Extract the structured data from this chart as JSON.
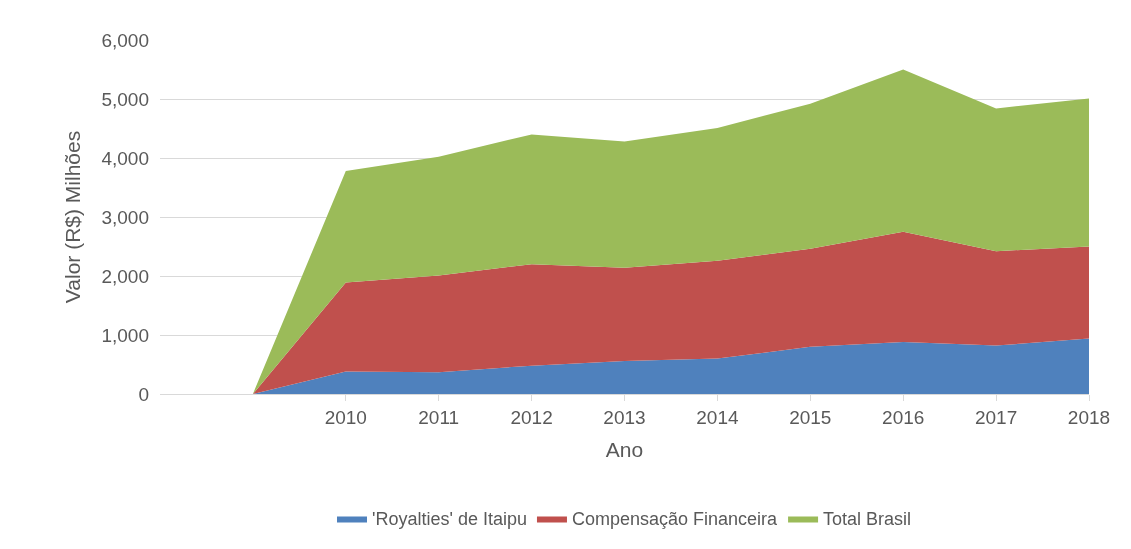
{
  "chart_data": {
    "type": "area",
    "stacked": true,
    "xlabel": "Ano",
    "ylabel": "Valor (R$) Milhões",
    "categories": [
      null,
      null,
      "2010",
      "2011",
      "2012",
      "2013",
      "2014",
      "2015",
      "2016",
      "2017",
      "2018"
    ],
    "series": [
      {
        "name": "'Royalties' de Itaipu",
        "color": "#4f81bd",
        "values": [
          null,
          0,
          380,
          370,
          480,
          560,
          600,
          800,
          880,
          820,
          940
        ]
      },
      {
        "name": "Compensação Financeira",
        "color": "#c0504d",
        "values": [
          null,
          0,
          1510,
          1640,
          1720,
          1580,
          1660,
          1660,
          1870,
          1600,
          1560
        ]
      },
      {
        "name": "Total Brasil",
        "color": "#9bbb59",
        "values": [
          null,
          0,
          1890,
          2010,
          2200,
          2140,
          2250,
          2460,
          2750,
          2420,
          2510
        ]
      }
    ],
    "ylim": [
      0,
      6000
    ],
    "yticks": [
      0,
      {
        "value": 1000,
        "label": "1,000"
      },
      {
        "value": 2000,
        "label": "2,000"
      },
      {
        "value": 3000,
        "label": "3,000"
      },
      {
        "value": 4000,
        "label": "4,000"
      },
      {
        "value": 5000,
        "label": "5,000"
      },
      {
        "value": 6000,
        "label": "6,000"
      }
    ],
    "grid": "y",
    "legend": "bottom"
  }
}
